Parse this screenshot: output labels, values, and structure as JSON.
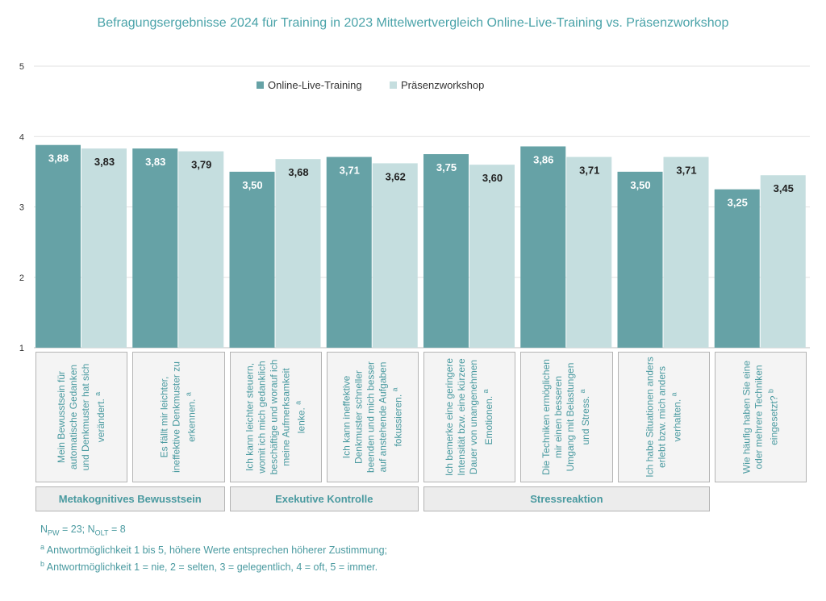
{
  "chart_data": {
    "type": "bar",
    "title": "Befragungsergebnisse 2024 für Training in 2023 Mittelwertvergleich Online-Live-Training vs. Präsenzworkshop",
    "ylim": [
      1,
      5
    ],
    "yticks": [
      "1",
      "2",
      "3",
      "4",
      "5"
    ],
    "grid": true,
    "legend_position": "top-center",
    "categories": [
      {
        "text": "Mein Bewusstsein für automatische Gedanken und Denkmuster hat sich verändert.",
        "note": "a"
      },
      {
        "text": "Es fällt mir leichter, ineffektive Denkmuster zu erkennen.",
        "note": "a"
      },
      {
        "text": "Ich kann leichter steuern, womit ich mich gedanklich beschäftige und worauf ich meine Aufmerksamkeit lenke.",
        "note": "a"
      },
      {
        "text": "Ich kann ineffektive Denkmuster schneller beenden und mich besser auf anstehende Aufgaben fokussieren.",
        "note": "a"
      },
      {
        "text": "Ich bemerke eine geringere Intensität bzw. eine kürzere Dauer von unangenehmen Emotionen.",
        "note": "a"
      },
      {
        "text": "Die Techniken ermöglichen mir einen besseren Umgang mit Belastungen und Stress.",
        "note": "a"
      },
      {
        "text": "Ich habe Situationen anders erlebt bzw. mich anders verhalten.",
        "note": "a"
      },
      {
        "text": "Wie häufig haben Sie eine oder mehrere Techniken eingesetzt?",
        "note": "b"
      }
    ],
    "series": [
      {
        "name": "Online-Live-Training",
        "color": "#66a2a6",
        "label_color": "#ffffff",
        "values": [
          3.88,
          3.83,
          3.5,
          3.71,
          3.75,
          3.86,
          3.5,
          3.25
        ],
        "labels": [
          "3,88",
          "3,83",
          "3,50",
          "3,71",
          "3,75",
          "3,86",
          "3,50",
          "3,25"
        ]
      },
      {
        "name": "Präsenzworkshop",
        "color": "#c5dedf",
        "label_color": "#222222",
        "values": [
          3.83,
          3.79,
          3.68,
          3.62,
          3.6,
          3.71,
          3.71,
          3.45
        ],
        "labels": [
          "3,83",
          "3,79",
          "3,68",
          "3,62",
          "3,60",
          "3,71",
          "3,71",
          "3,45"
        ]
      }
    ],
    "groups": [
      {
        "name": "Metakognitives Bewusstsein",
        "span": [
          0,
          1
        ]
      },
      {
        "name": "Exekutive Kontrolle",
        "span": [
          2,
          3
        ]
      },
      {
        "name": "Stressreaktion",
        "span": [
          4,
          6
        ]
      }
    ]
  },
  "footnotes": {
    "n_pw_base": "N",
    "n_pw_sub": "PW",
    "n_pw_rest": " = 23; N",
    "n_olt_sub": "OLT",
    "n_olt_rest": " = 8",
    "a_mark": "a",
    "a_text": " Antwortmöglichkeit 1 bis 5, höhere Werte entsprechen höherer Zustimmung;",
    "b_mark": "b",
    "b_text": " Antwortmöglichkeit 1 = nie, 2 = selten, 3 = gelegentlich, 4 = oft, 5 = immer."
  }
}
